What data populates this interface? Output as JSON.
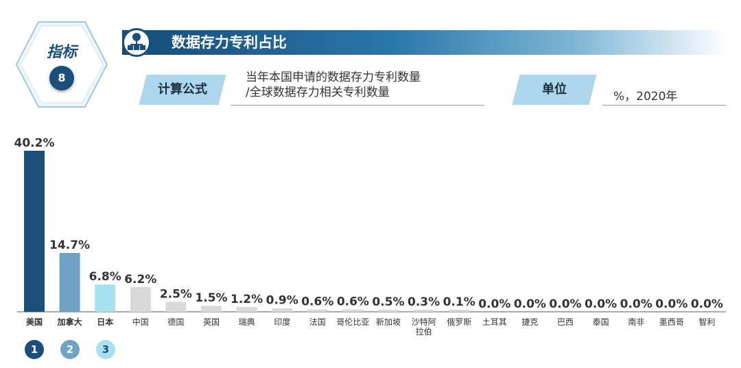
{
  "indicator": {
    "label": "指标",
    "number": "8"
  },
  "title": "数据存力专利占比",
  "formula": {
    "label": "计算公式",
    "line1": "当年本国申请的数据存力专利数量",
    "line2": "/全球数据存力相关专利数量"
  },
  "unit": {
    "label": "单位",
    "value": "%，2020年"
  },
  "colors": {
    "primary": "#1b4f7a",
    "rank2": "#6fa3c6",
    "rank3": "#a6e2ee",
    "other": "#d9d9d9",
    "tag_bg": "#aed6ec"
  },
  "icons": [
    "network-server-icon"
  ],
  "rank_badges": [
    "1",
    "2",
    "3"
  ],
  "chart_data": {
    "type": "bar",
    "title": "",
    "xlabel": "",
    "ylabel": "",
    "ylim": [
      0,
      40.2
    ],
    "categories": [
      "美国",
      "加拿大",
      "日本",
      "中国",
      "德国",
      "英国",
      "瑞典",
      "印度",
      "法国",
      "哥伦比亚",
      "新加坡",
      "沙特阿拉伯",
      "俄罗斯",
      "土耳其",
      "捷克",
      "巴西",
      "泰国",
      "南非",
      "墨西哥",
      "智利"
    ],
    "category_labels": [
      "美国",
      "加拿大",
      "日本",
      "中国",
      "德国",
      "英国",
      "瑞典",
      "印度",
      "法国",
      "哥伦比亚",
      "新加坡",
      "沙特阿|拉伯",
      "俄罗斯",
      "土耳其",
      "捷克",
      "巴西",
      "泰国",
      "南非",
      "墨西哥",
      "智利"
    ],
    "values": [
      40.2,
      14.7,
      6.8,
      6.2,
      2.5,
      1.5,
      1.2,
      0.9,
      0.6,
      0.6,
      0.5,
      0.3,
      0.1,
      0.0,
      0.0,
      0.0,
      0.0,
      0.0,
      0.0,
      0.0
    ],
    "value_labels": [
      "40.2%",
      "14.7%",
      "6.8%",
      "6.2%",
      "2.5%",
      "1.5%",
      "1.2%",
      "0.9%",
      "0.6%",
      "0.6%",
      "0.5%",
      "0.3%",
      "0.1%",
      "0.0%",
      "0.0%",
      "0.0%",
      "0.0%",
      "0.0%",
      "0.0%",
      "0.0%"
    ],
    "bold_categories": [
      0,
      1,
      2
    ],
    "grid": false,
    "legend": "none"
  }
}
